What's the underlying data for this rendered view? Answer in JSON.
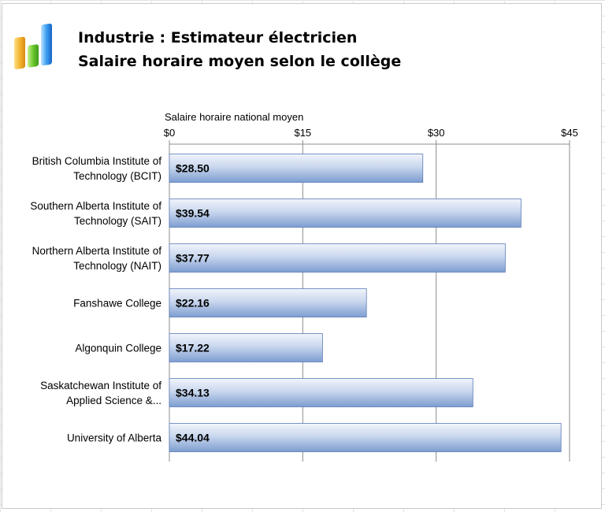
{
  "header": {
    "title": "Industrie : Estimateur électricien",
    "subtitle": "Salaire horaire moyen selon le collège",
    "logo_icon": "bar-chart-logo-icon"
  },
  "chart_data": {
    "type": "bar",
    "orientation": "horizontal",
    "title": "Industrie : Estimateur électricien",
    "subtitle": "Salaire horaire moyen selon le collège",
    "xlabel": "Salaire horaire national moyen",
    "ylabel": "",
    "xlim": [
      0,
      45
    ],
    "x_ticks": [
      0,
      15,
      30,
      45
    ],
    "x_tick_labels": [
      "$0",
      "$15",
      "$30",
      "$45"
    ],
    "x_axis_position": "top",
    "grid": true,
    "categories": [
      [
        "British Columbia Institute of",
        "Technology (BCIT)"
      ],
      [
        "Southern Alberta Institute of",
        "Technology (SAIT)"
      ],
      [
        "Northern Alberta Institute of",
        "Technology (NAIT)"
      ],
      [
        "Fanshawe College"
      ],
      [
        "Algonquin College"
      ],
      [
        "Saskatchewan Institute of",
        "Applied Science &..."
      ],
      [
        "University of Alberta"
      ]
    ],
    "values": [
      28.5,
      39.54,
      37.77,
      22.16,
      17.22,
      34.13,
      44.04
    ],
    "data_labels": [
      "$28.50",
      "$39.54",
      "$37.77",
      "$22.16",
      "$17.22",
      "$34.13",
      "$44.04"
    ],
    "colors": {
      "bar_light": "#e6ecf7",
      "bar_mid": "#b7c9e7",
      "bar_dark": "#6f92c9",
      "bar_edge": "#5a7cb8",
      "grid": "#8c8c8c"
    }
  }
}
